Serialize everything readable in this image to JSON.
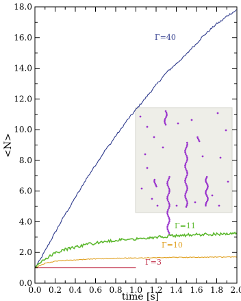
{
  "chart_data": {
    "type": "line",
    "xlabel": "time [s]",
    "ylabel": "<N>",
    "xlim": [
      0.0,
      2.0
    ],
    "ylim": [
      0.0,
      18.0
    ],
    "xticks": [
      "0.0",
      "0.2",
      "0.4",
      "0.6",
      "0.8",
      "1.0",
      "1.2",
      "1.4",
      "1.6",
      "1.8",
      "2.0"
    ],
    "yticks": [
      "0.0",
      "2.0",
      "4.0",
      "6.0",
      "8.0",
      "10.0",
      "12.0",
      "14.0",
      "16.0",
      "18.0"
    ],
    "grid": false,
    "series": [
      {
        "name": "Γ=40",
        "color": "#2e3a8c",
        "x": [
          0.0,
          0.05,
          0.1,
          0.15,
          0.2,
          0.25,
          0.3,
          0.35,
          0.4,
          0.45,
          0.5,
          0.55,
          0.6,
          0.65,
          0.7,
          0.75,
          0.8,
          0.85,
          0.9,
          0.95,
          1.0,
          1.05,
          1.1,
          1.15,
          1.2,
          1.25,
          1.3,
          1.35,
          1.4,
          1.45,
          1.5,
          1.55,
          1.6,
          1.65,
          1.7,
          1.75,
          1.8,
          1.85,
          1.9,
          1.95,
          2.0
        ],
        "values": [
          1.0,
          1.5,
          2.1,
          2.7,
          3.3,
          3.9,
          4.5,
          5.0,
          5.6,
          6.1,
          6.7,
          7.2,
          7.7,
          8.2,
          8.7,
          9.1,
          9.6,
          10.0,
          10.5,
          10.9,
          11.3,
          11.7,
          12.1,
          12.5,
          12.9,
          13.3,
          13.7,
          14.0,
          14.3,
          14.6,
          14.9,
          15.3,
          15.6,
          16.0,
          16.3,
          16.6,
          16.9,
          17.1,
          17.4,
          17.6,
          17.8
        ]
      },
      {
        "name": "Γ=11",
        "color": "#5cb82e",
        "x": [
          0.0,
          0.1,
          0.2,
          0.3,
          0.4,
          0.5,
          0.6,
          0.7,
          0.8,
          0.9,
          1.0,
          1.1,
          1.2,
          1.3,
          1.4,
          1.5,
          1.6,
          1.7,
          1.8,
          1.9,
          2.0
        ],
        "values": [
          1.0,
          1.6,
          1.95,
          2.2,
          2.35,
          2.5,
          2.6,
          2.7,
          2.78,
          2.85,
          2.9,
          2.95,
          3.0,
          3.05,
          3.1,
          3.13,
          3.16,
          3.18,
          3.2,
          3.22,
          3.22
        ]
      },
      {
        "name": "Γ=10",
        "color": "#e0a020",
        "x": [
          0.0,
          0.1,
          0.2,
          0.3,
          0.4,
          0.5,
          0.6,
          0.7,
          0.8,
          0.9,
          1.0,
          1.1,
          1.2,
          1.3,
          1.4,
          1.5,
          1.6,
          1.7,
          1.8,
          1.9,
          2.0
        ],
        "values": [
          1.0,
          1.3,
          1.42,
          1.48,
          1.52,
          1.55,
          1.58,
          1.6,
          1.62,
          1.63,
          1.64,
          1.65,
          1.66,
          1.67,
          1.68,
          1.68,
          1.69,
          1.69,
          1.7,
          1.7,
          1.7
        ]
      },
      {
        "name": "Γ=3",
        "color": "#c0304a",
        "x": [
          0.0,
          1.0
        ],
        "values": [
          1.0,
          1.0
        ]
      }
    ]
  },
  "inset": {
    "background": "#eeeee8",
    "particle_color": "#9933cc"
  }
}
